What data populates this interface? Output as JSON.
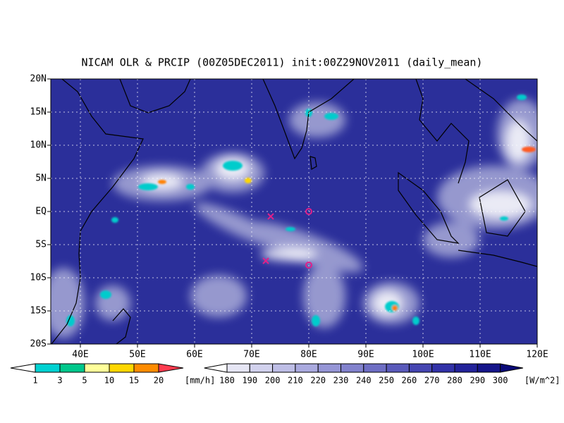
{
  "title": "NICAM OLR & PRCIP (00Z05DEC2011) init:00Z29NOV2011 (daily_mean)",
  "lat_labels": [
    "20N",
    "15N",
    "10N",
    "5N",
    "EQ",
    "5S",
    "10S",
    "15S",
    "20S"
  ],
  "lon_labels": [
    "40E",
    "50E",
    "60E",
    "70E",
    "80E",
    "90E",
    "100E",
    "110E",
    "120E"
  ],
  "precip_colorbar": {
    "labels": [
      "1",
      "3",
      "5",
      "10",
      "15",
      "20"
    ],
    "unit": "[mm/h]"
  },
  "olr_colorbar": {
    "labels": [
      "180",
      "190",
      "200",
      "210",
      "220",
      "230",
      "240",
      "250",
      "260",
      "270",
      "280",
      "290",
      "300"
    ],
    "unit": "[W/m^2]"
  }
}
